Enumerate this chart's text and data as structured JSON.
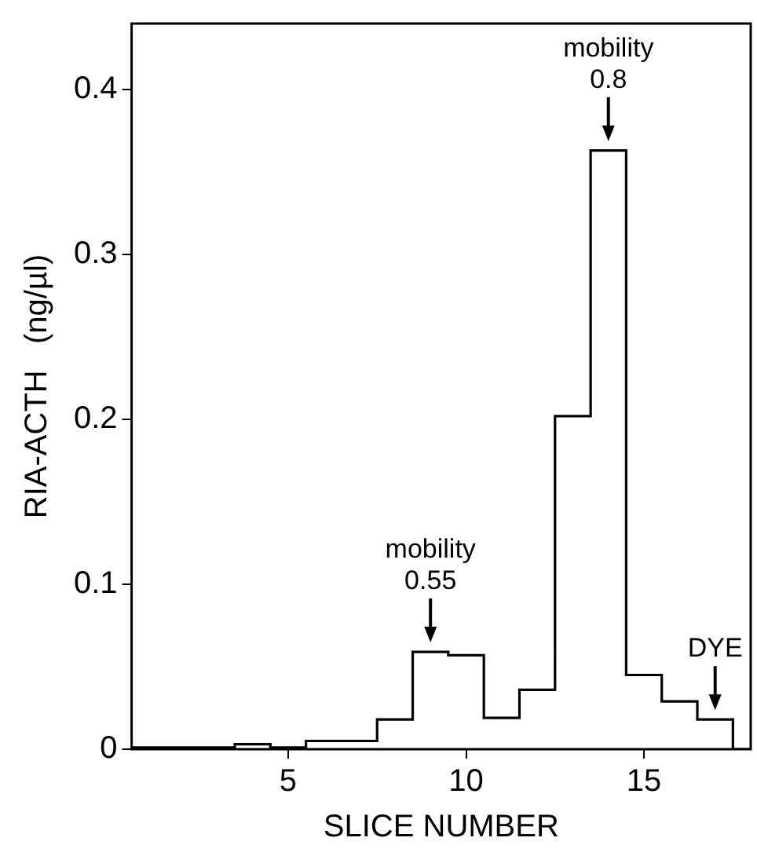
{
  "chart_data": {
    "type": "step",
    "xlabel": "SLICE NUMBER",
    "ylabel": "RIA-ACTH   (ng/µl)",
    "x": [
      1,
      2,
      3,
      4,
      5,
      6,
      7,
      8,
      9,
      10,
      11,
      12,
      13,
      14,
      15,
      16,
      17,
      18
    ],
    "values": [
      0.001,
      0.001,
      0.001,
      0.003,
      0.001,
      0.005,
      0.005,
      0.018,
      0.059,
      0.057,
      0.019,
      0.036,
      0.202,
      0.363,
      0.045,
      0.029,
      0.018,
      0
    ],
    "color": "#000000",
    "xlim": [
      0.6,
      18
    ],
    "xticks": [
      5,
      10,
      15
    ],
    "ylim": [
      0,
      0.44
    ],
    "yticks": [
      {
        "value": 0,
        "label": "0"
      },
      0.1,
      0.2,
      0.3,
      0.4
    ],
    "annotations": [
      {
        "text": "mobility\n0.55",
        "x": 9,
        "y": 0.059
      },
      {
        "text": "mobility\n0.8",
        "x": 14,
        "y": 0.363
      },
      {
        "text": "DYE",
        "x": 17,
        "y": 0.018
      }
    ],
    "grid": false,
    "legend": false
  }
}
